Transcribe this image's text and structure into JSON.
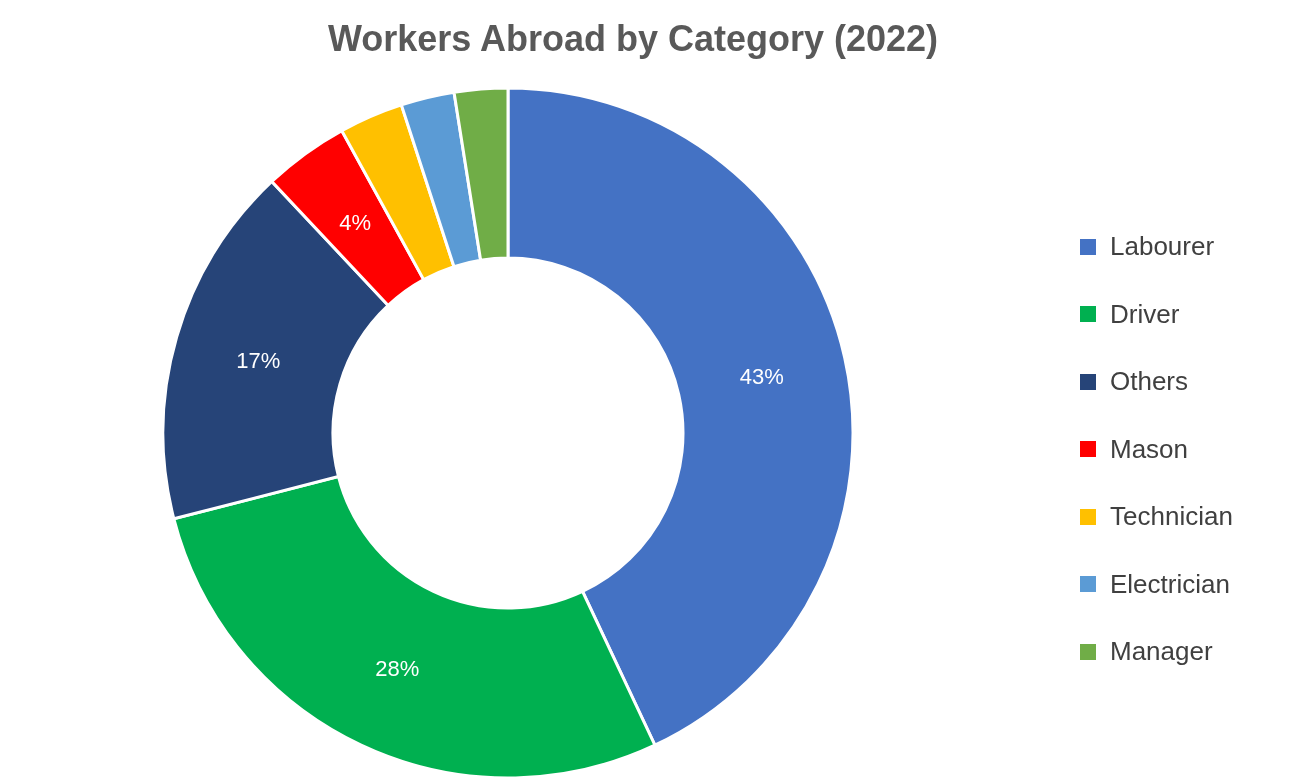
{
  "chart_data": {
    "type": "donut",
    "title": "Workers Abroad by Category (2022)",
    "categories": [
      "Labourer",
      "Driver",
      "Others",
      "Mason",
      "Technician",
      "Electrician",
      "Manager"
    ],
    "values": [
      43,
      28,
      17,
      4,
      3,
      2.5,
      2.5
    ],
    "colors": [
      "#4472c4",
      "#00b050",
      "#264478",
      "#ff0000",
      "#ffc000",
      "#5b9bd5",
      "#70ad47"
    ],
    "value_labels": [
      "43%",
      "28%",
      "17%",
      "4%",
      null,
      null,
      null
    ],
    "legend": "right"
  }
}
